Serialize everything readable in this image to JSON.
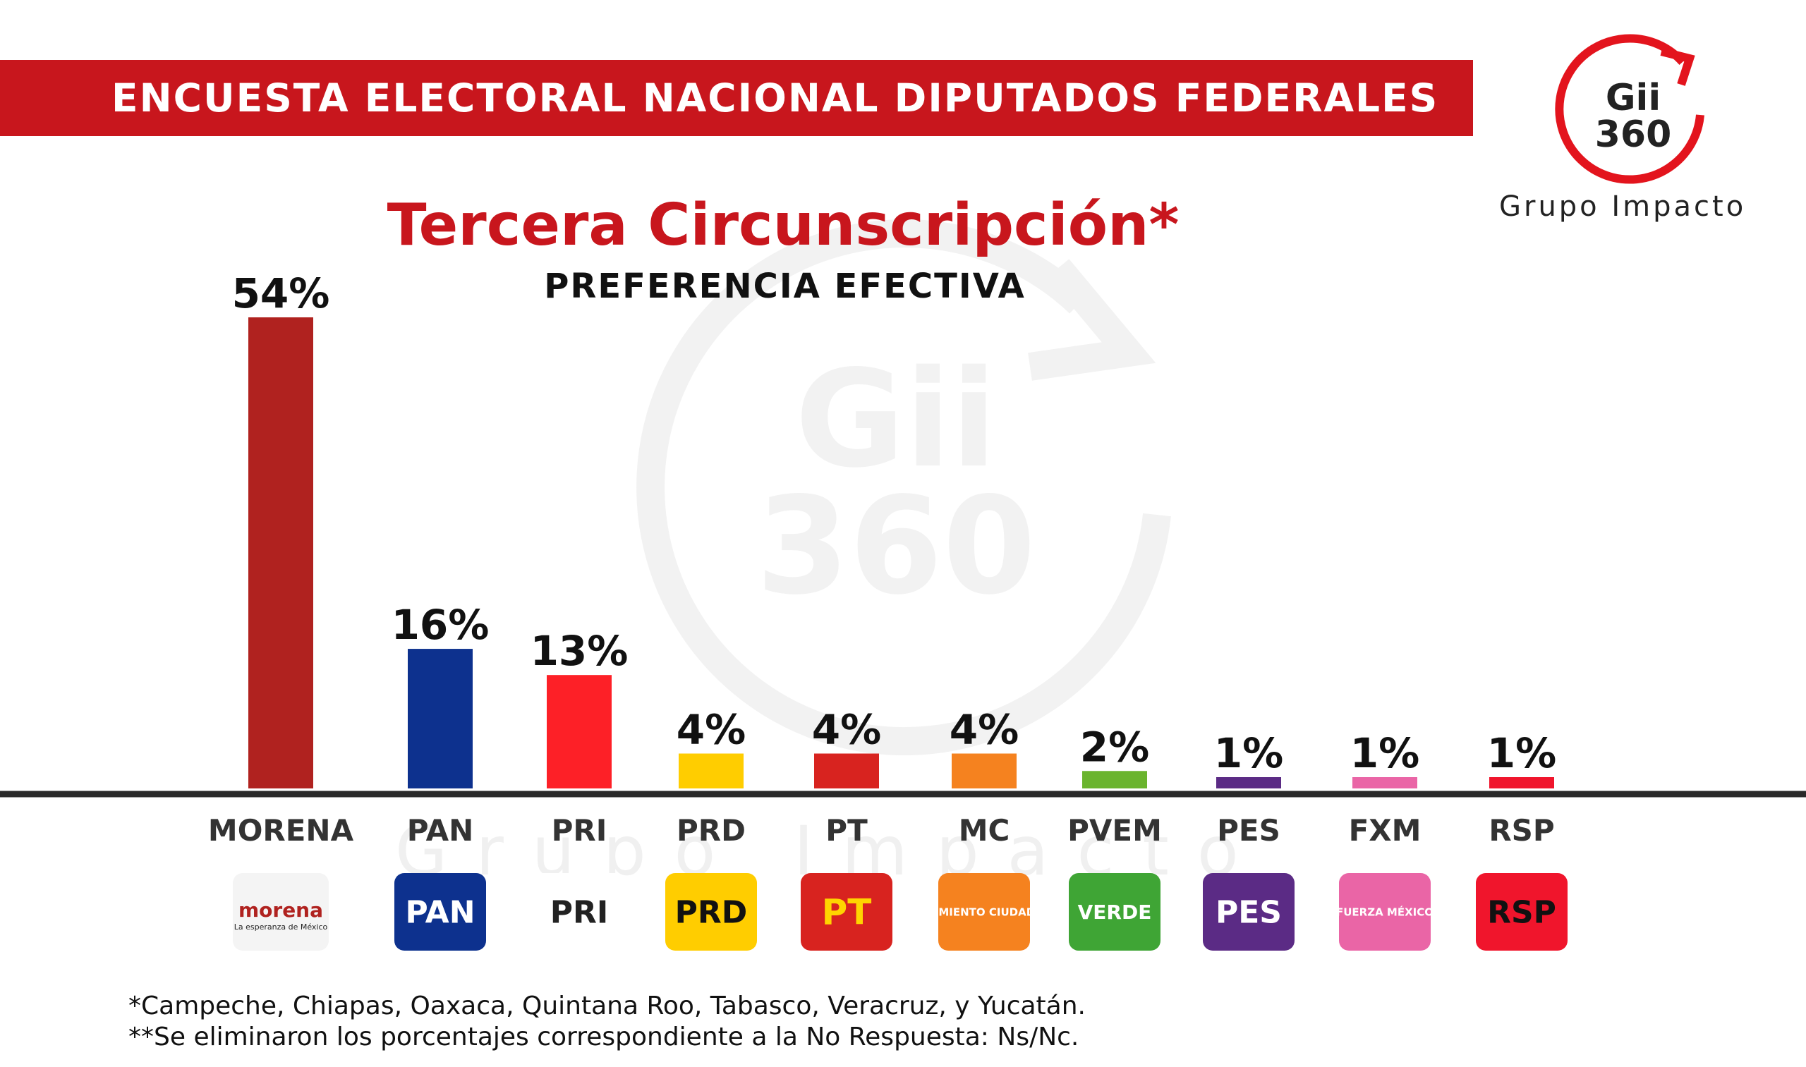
{
  "header": {
    "banner_title": "ENCUESTA ELECTORAL NACIONAL DIPUTADOS FEDERALES",
    "banner_color": "#c8161d"
  },
  "logo": {
    "mark_line1": "Gii",
    "mark_line2": "360",
    "text": "Grupo Impacto",
    "accent_color": "#e3141d"
  },
  "watermark": {
    "line1": "Gii",
    "line2": "360",
    "text": "Grupo Impacto"
  },
  "chart_data": {
    "type": "bar",
    "title": "Tercera Circunscripción*",
    "subtitle": "PREFERENCIA EFECTIVA",
    "xlabel": "",
    "ylabel": "",
    "ylim": [
      0,
      54
    ],
    "grid": false,
    "legend": "none",
    "categories": [
      "MORENA",
      "PAN",
      "PRI",
      "PRD",
      "PT",
      "MC",
      "PVEM",
      "PES",
      "FXM",
      "RSP"
    ],
    "values": [
      54,
      16,
      13,
      4,
      4,
      4,
      2,
      1,
      1,
      1
    ],
    "data_labels": [
      "54%",
      "16%",
      "13%",
      "4%",
      "4%",
      "4%",
      "2%",
      "1%",
      "1%",
      "1%"
    ],
    "colors": [
      "#b0221f",
      "#0d318e",
      "#fd2027",
      "#ffcd00",
      "#d8231f",
      "#f5821f",
      "#6ab42d",
      "#5b2b85",
      "#ea65a6",
      "#f0152c"
    ],
    "party_logos": [
      {
        "name": "morena-logo",
        "text": "morena",
        "subtext": "La esperanza de México",
        "bg": "#f4f4f4",
        "fg": "#b0221f"
      },
      {
        "name": "pan-logo",
        "text": "PAN",
        "bg": "#0d318e",
        "fg": "#ffffff"
      },
      {
        "name": "pri-logo",
        "text": "PRI",
        "bg": "#ffffff",
        "fg": "#222222"
      },
      {
        "name": "prd-logo",
        "text": "PRD",
        "bg": "#ffcd00",
        "fg": "#111111"
      },
      {
        "name": "pt-logo",
        "text": "PT",
        "bg": "#d8231f",
        "fg": "#ffd400"
      },
      {
        "name": "mc-logo",
        "text": "MOVIMIENTO CIUDADANO",
        "bg": "#f5821f",
        "fg": "#ffffff"
      },
      {
        "name": "pvem-logo",
        "text": "VERDE",
        "bg": "#3fa535",
        "fg": "#ffffff"
      },
      {
        "name": "pes-logo",
        "text": "PES",
        "bg": "#5b2b85",
        "fg": "#ffffff"
      },
      {
        "name": "fxm-logo",
        "text": "FUERZA MÉXICO",
        "bg": "#ea65a6",
        "fg": "#ffffff"
      },
      {
        "name": "rsp-logo",
        "text": "RSP",
        "bg": "#f0152c",
        "fg": "#111111"
      }
    ]
  },
  "footnotes": {
    "note1": "*Campeche, Chiapas, Oaxaca, Quintana Roo, Tabasco, Veracruz, y Yucatán.",
    "note2": "**Se eliminaron los porcentajes correspondiente a la No Respuesta: Ns/Nc."
  }
}
